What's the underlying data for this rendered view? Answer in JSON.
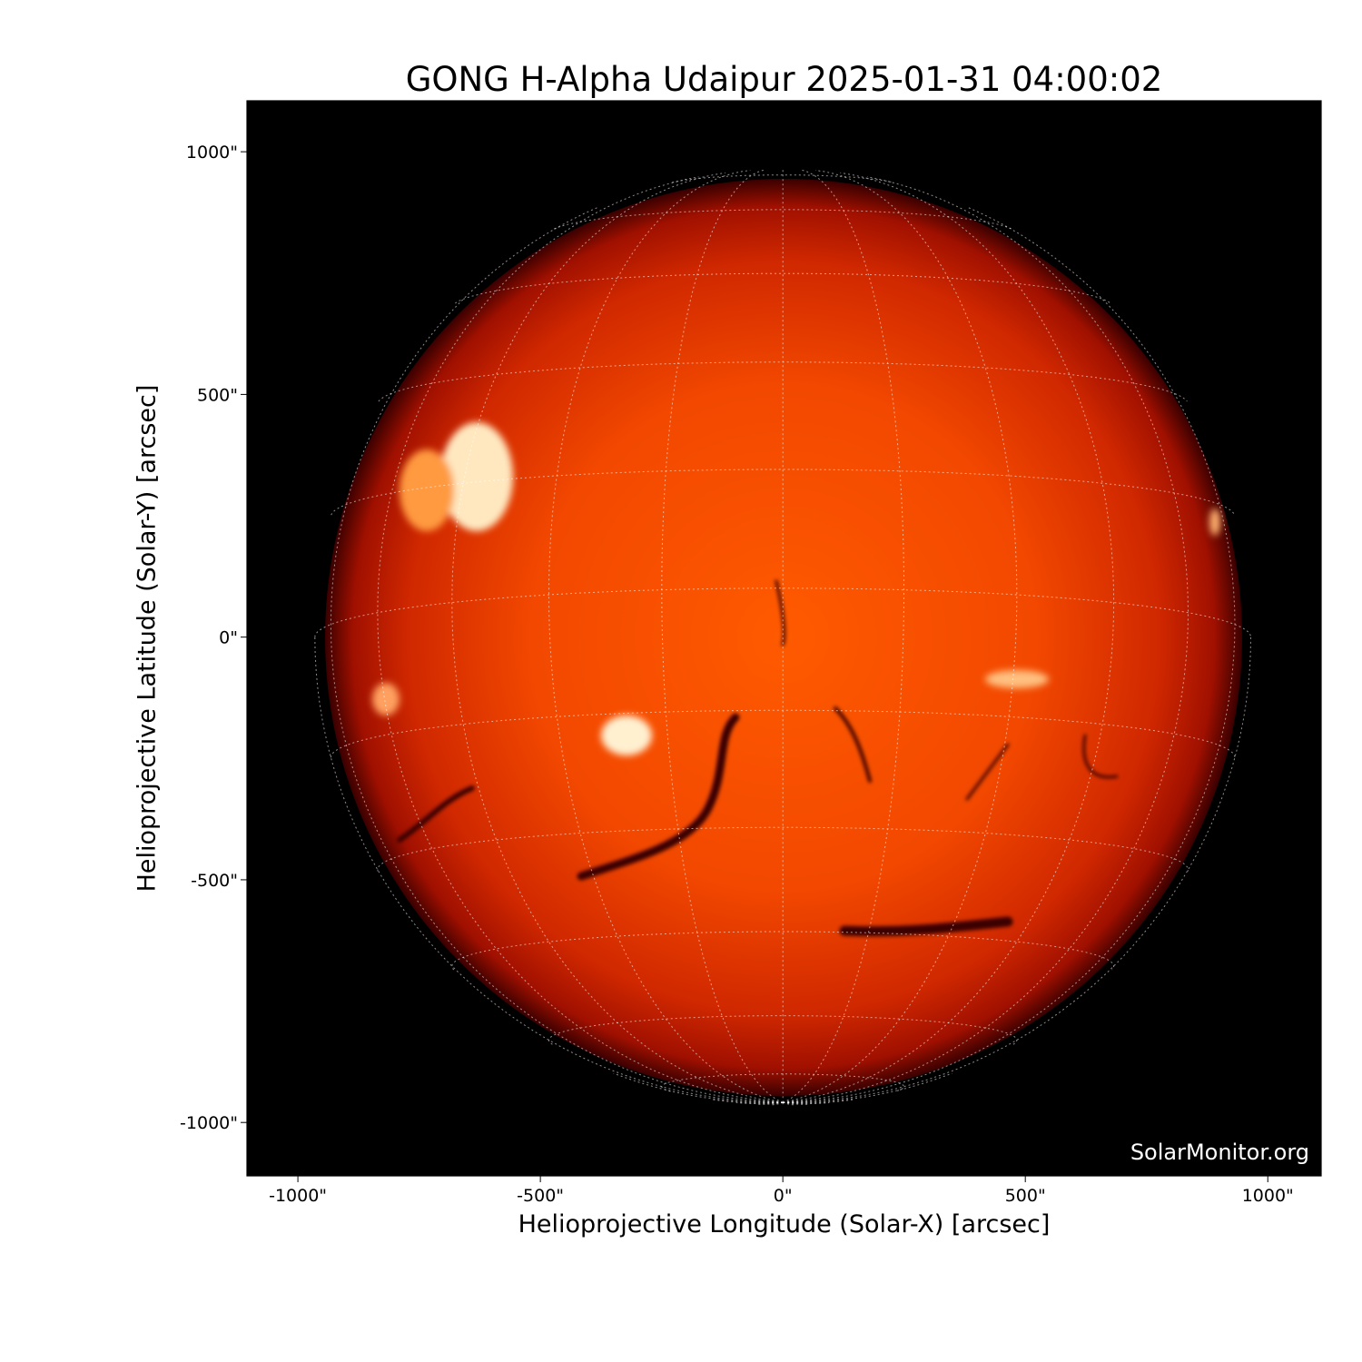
{
  "title": "GONG H-Alpha Udaipur 2025-01-31 04:00:02",
  "xlabel": "Helioprojective Longitude (Solar-X) [arcsec]",
  "ylabel": "Helioprojective Latitude (Solar-Y) [arcsec]",
  "watermark": "SolarMonitor.org",
  "xticks": [
    {
      "value": -1000,
      "label": "-1000\""
    },
    {
      "value": -500,
      "label": "-500\""
    },
    {
      "value": 0,
      "label": "0\""
    },
    {
      "value": 500,
      "label": "500\""
    },
    {
      "value": 1000,
      "label": "1000\""
    }
  ],
  "yticks": [
    {
      "value": 1000,
      "label": "1000\""
    },
    {
      "value": 500,
      "label": "500\""
    },
    {
      "value": 0,
      "label": "0\""
    },
    {
      "value": -500,
      "label": "-500\""
    },
    {
      "value": -1000,
      "label": "-1000\""
    }
  ],
  "xlim": [
    -1105,
    1110
  ],
  "ylim": [
    -1110,
    1105
  ],
  "solar_radius_arcsec": 946,
  "grid_spacing_deg": 15,
  "colors": {
    "background": "#000000",
    "disk_center": "#ff5a00",
    "disk_limb": "#6a0000",
    "grid": "#ffffff",
    "plage": "#fff0d0",
    "filament": "#3a0000"
  }
}
